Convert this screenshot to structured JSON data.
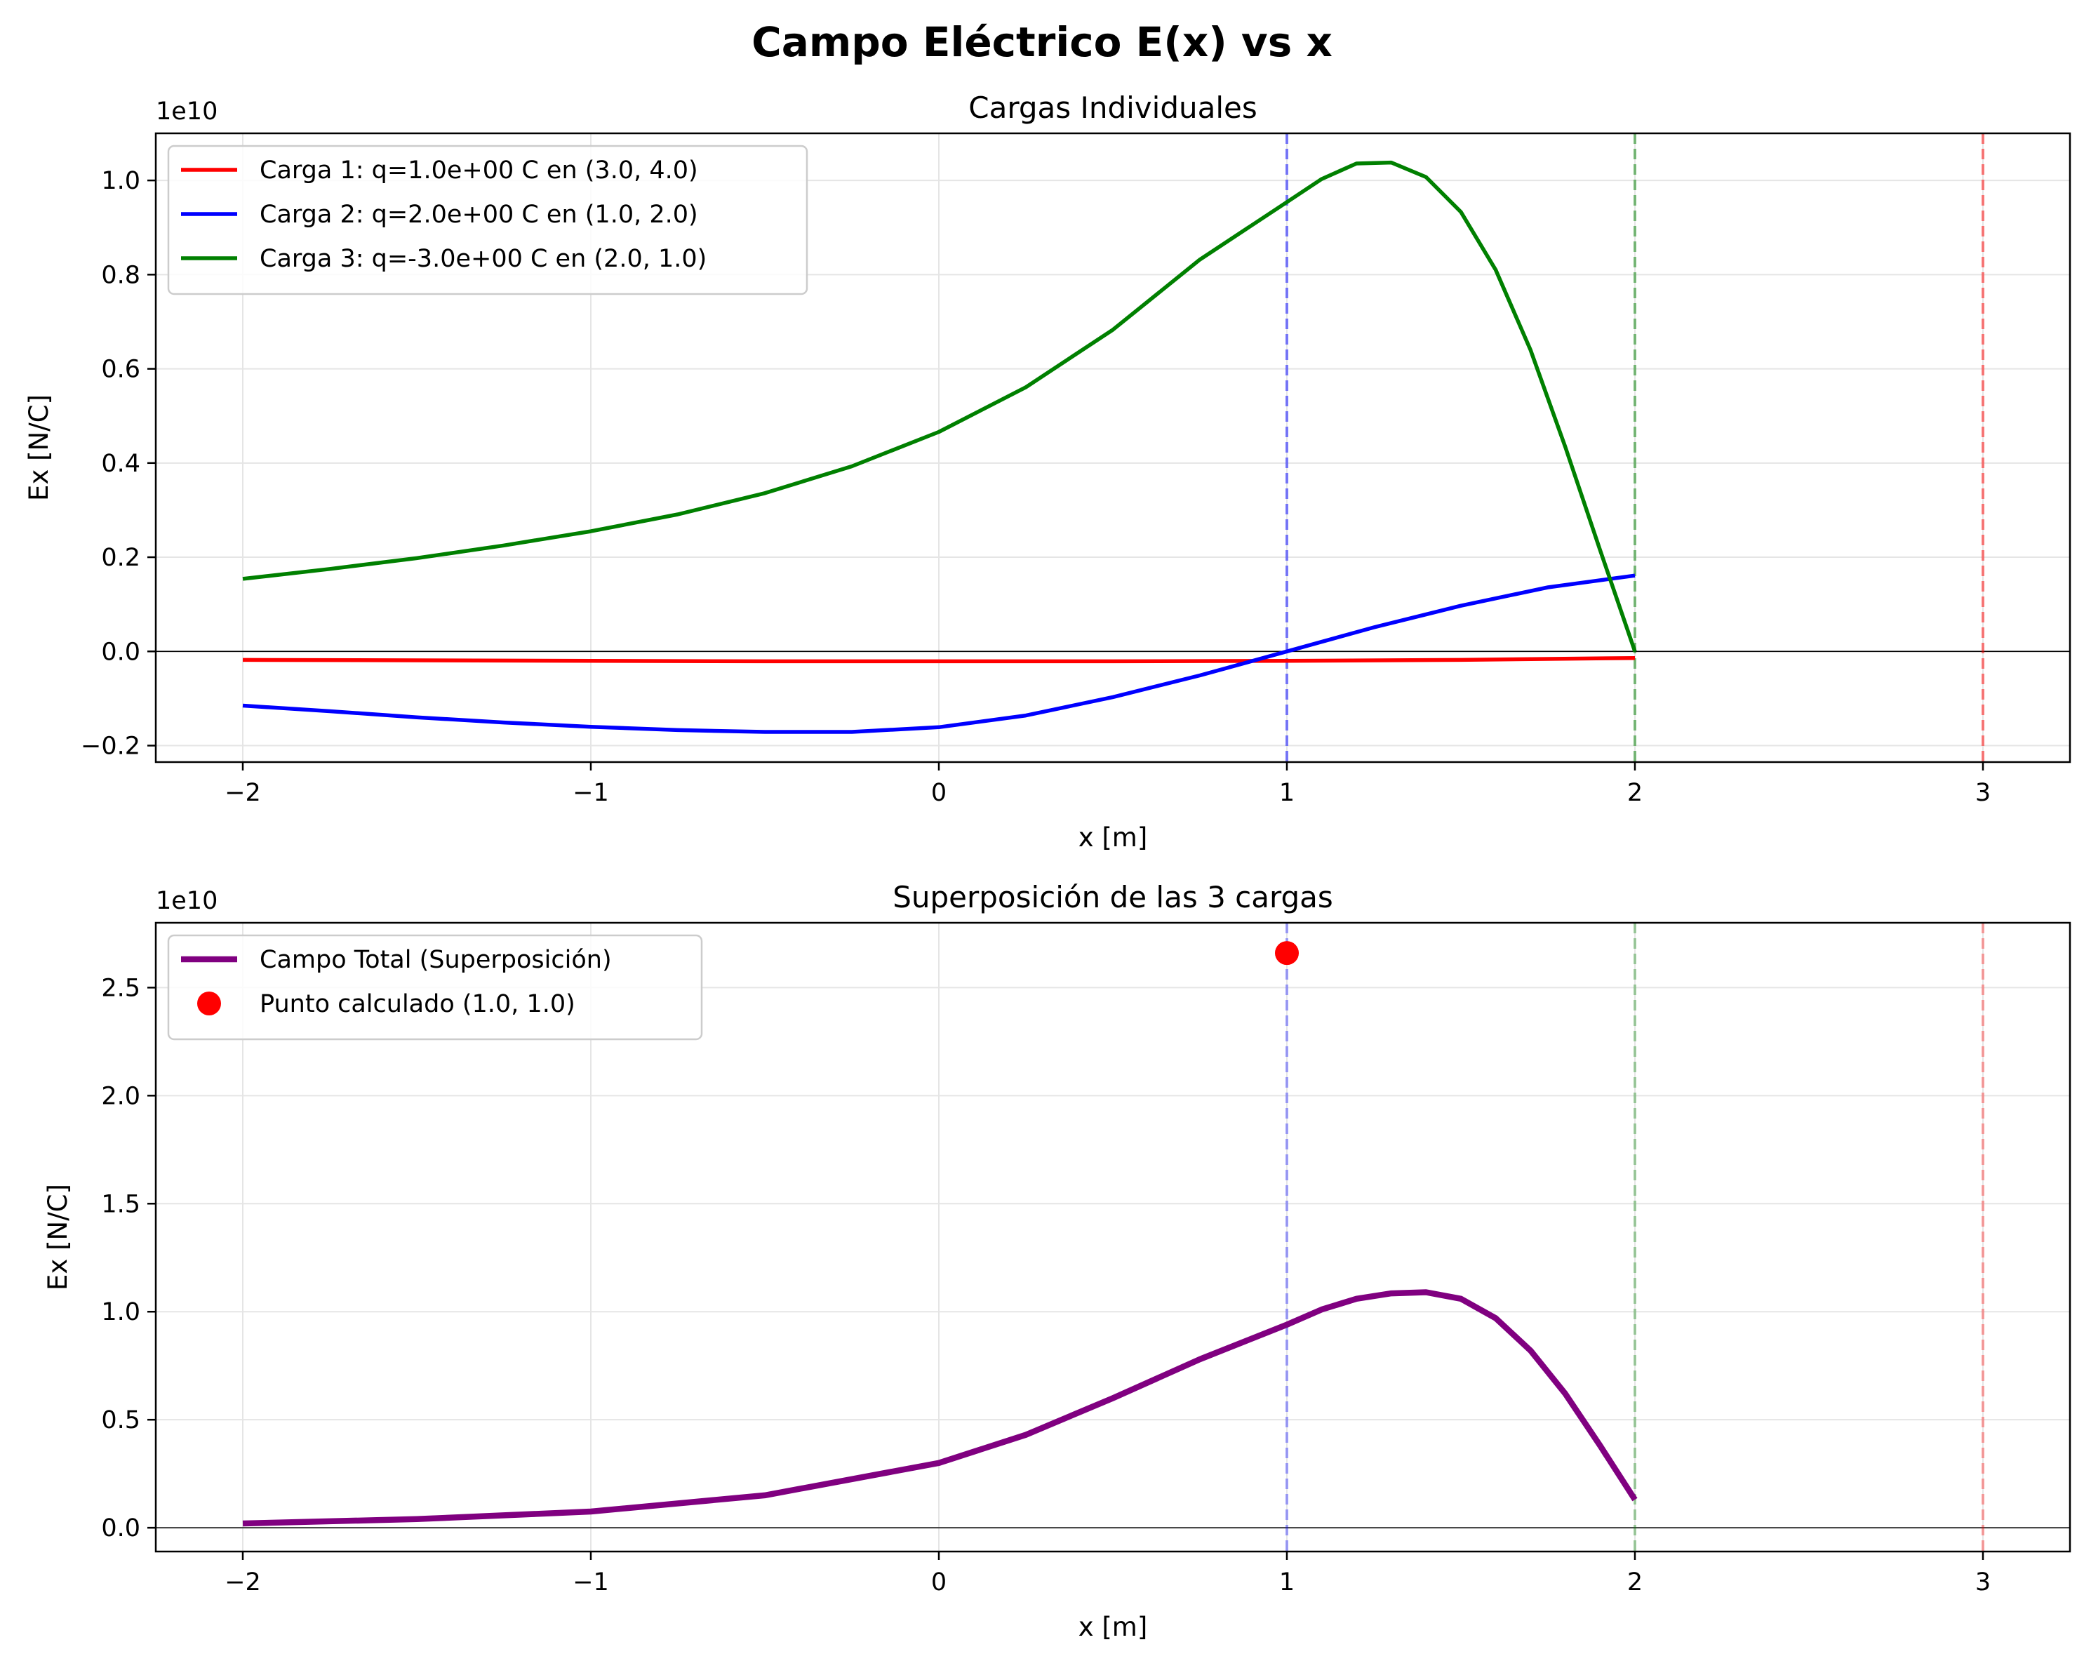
{
  "figure": {
    "title": "Campo Eléctrico E(x) vs x",
    "colors": {
      "carga1": "#ff0000",
      "carga2": "#0000ff",
      "carga3": "#008000",
      "total": "#800080",
      "punto": "#ff0000"
    }
  },
  "chart_data": [
    {
      "type": "line",
      "title": "Cargas Individuales",
      "xlabel": "x [m]",
      "ylabel": "Ex [N/C]",
      "y_offset_label": "1e10",
      "y_scale": 10000000000.0,
      "xlim": [
        -2.25,
        3.25
      ],
      "ylim": [
        -0.235,
        1.1
      ],
      "xticks": [
        -2,
        -1,
        0,
        1,
        2,
        3
      ],
      "xtick_labels": [
        "−2",
        "−1",
        "0",
        "1",
        "2",
        "3"
      ],
      "yticks": [
        -0.2,
        0.0,
        0.2,
        0.4,
        0.6,
        0.8,
        1.0
      ],
      "ytick_labels": [
        "−0.2",
        "0.0",
        "0.2",
        "0.4",
        "0.6",
        "0.8",
        "1.0"
      ],
      "grid": true,
      "legend_position": "upper-left",
      "vlines": [
        {
          "x": 1,
          "color": "#0000ff",
          "style": "dashed",
          "alpha": 0.5
        },
        {
          "x": 2,
          "color": "#008000",
          "style": "dashed",
          "alpha": 0.5
        },
        {
          "x": 3,
          "color": "#ff0000",
          "style": "dashed",
          "alpha": 0.5
        }
      ],
      "hline": 0,
      "series": [
        {
          "name": "Carga 1: q=1.0e+00 C en (3.0, 4.0)",
          "color": "#ff0000",
          "x": [
            -2,
            -1.5,
            -1,
            -0.5,
            0,
            0.5,
            1,
            1.5,
            2
          ],
          "y": [
            -0.018,
            -0.019,
            -0.02,
            -0.021,
            -0.021,
            -0.021,
            -0.02,
            -0.018,
            -0.014
          ]
        },
        {
          "name": "Carga 2: q=2.0e+00 C en (1.0, 2.0)",
          "color": "#0000ff",
          "x": [
            -2,
            -1.75,
            -1.5,
            -1.25,
            -1,
            -0.75,
            -0.5,
            -0.25,
            0,
            0.25,
            0.5,
            0.75,
            1,
            1.25,
            1.5,
            1.75,
            2
          ],
          "y": [
            -0.115,
            -0.127,
            -0.14,
            -0.151,
            -0.16,
            -0.167,
            -0.171,
            -0.171,
            -0.161,
            -0.136,
            -0.097,
            -0.051,
            0.0,
            0.051,
            0.097,
            0.136,
            0.161
          ]
        },
        {
          "name": "Carga 3: q=-3.0e+00 C en (2.0, 1.0)",
          "color": "#008000",
          "x": [
            -2,
            -1.75,
            -1.5,
            -1.25,
            -1,
            -0.75,
            -0.5,
            -0.25,
            0,
            0.25,
            0.5,
            0.75,
            1,
            1.1,
            1.2,
            1.3,
            1.4,
            1.5,
            1.6,
            1.7,
            1.8,
            1.9,
            2.0
          ],
          "y": [
            0.154,
            0.175,
            0.198,
            0.225,
            0.255,
            0.291,
            0.336,
            0.393,
            0.466,
            0.561,
            0.683,
            0.832,
            0.954,
            1.003,
            1.036,
            1.038,
            1.007,
            0.933,
            0.81,
            0.64,
            0.434,
            0.215,
            0.0
          ]
        }
      ]
    },
    {
      "type": "line",
      "title": "Superposición de las 3 cargas",
      "xlabel": "x [m]",
      "ylabel": "Ex [N/C]",
      "y_offset_label": "1e10",
      "y_scale": 10000000000.0,
      "xlim": [
        -2.25,
        3.25
      ],
      "ylim": [
        -0.11,
        2.8
      ],
      "xticks": [
        -2,
        -1,
        0,
        1,
        2,
        3
      ],
      "xtick_labels": [
        "−2",
        "−1",
        "0",
        "1",
        "2",
        "3"
      ],
      "yticks": [
        0.0,
        0.5,
        1.0,
        1.5,
        2.0,
        2.5
      ],
      "ytick_labels": [
        "0.0",
        "0.5",
        "1.0",
        "1.5",
        "2.0",
        "2.5"
      ],
      "grid": true,
      "legend_position": "upper-left",
      "vlines": [
        {
          "x": 1,
          "color": "#0000ff",
          "style": "dashed",
          "alpha": 0.35
        },
        {
          "x": 2,
          "color": "#008000",
          "style": "dashed",
          "alpha": 0.35
        },
        {
          "x": 3,
          "color": "#ff0000",
          "style": "dashed",
          "alpha": 0.35
        }
      ],
      "hline": 0,
      "series": [
        {
          "name": "Campo Total (Superposición)",
          "color": "#800080",
          "x": [
            -2,
            -1.5,
            -1,
            -0.5,
            0,
            0.25,
            0.5,
            0.75,
            1,
            1.1,
            1.2,
            1.3,
            1.4,
            1.5,
            1.6,
            1.7,
            1.8,
            1.9,
            2.0
          ],
          "y": [
            0.02,
            0.04,
            0.075,
            0.15,
            0.3,
            0.43,
            0.6,
            0.78,
            0.94,
            1.01,
            1.06,
            1.085,
            1.09,
            1.06,
            0.97,
            0.82,
            0.62,
            0.38,
            0.13
          ]
        }
      ],
      "points": [
        {
          "name": "Punto calculado (1.0, 1.0)",
          "color": "#ff0000",
          "x": 1.0,
          "y": 2.66
        }
      ]
    }
  ]
}
